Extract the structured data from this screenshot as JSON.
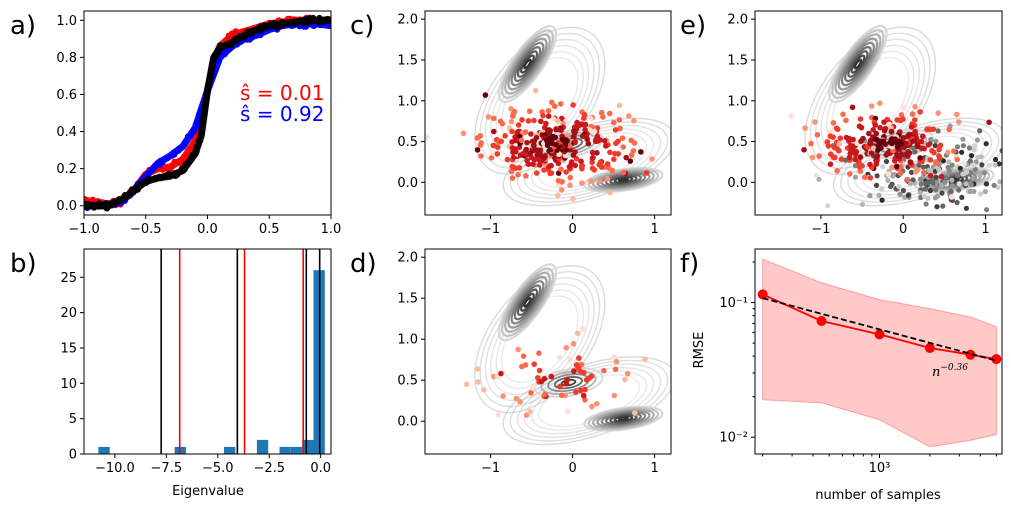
{
  "panel_labels": [
    "a)",
    "b)",
    "c)",
    "d)",
    "e)",
    "f)"
  ],
  "colors": {
    "red": "#ff0000",
    "blue": "#0000ff",
    "black": "#000000",
    "bar": "#1f77b4",
    "rmse_line": "#ff0000",
    "band": "#ffc9c9",
    "fit": "#000000"
  },
  "chart_data": [
    {
      "id": "a",
      "type": "line",
      "xlim": [
        -1.0,
        1.0
      ],
      "ylim": [
        -0.05,
        1.05
      ],
      "xticks": [
        -1.0,
        -0.5,
        0.0,
        0.5,
        1.0
      ],
      "xtick_labels": [
        "−1.0",
        "−0.5",
        "0.0",
        "0.5",
        "1.0"
      ],
      "yticks": [
        0.0,
        0.2,
        0.4,
        0.6,
        0.8,
        1.0
      ],
      "ytick_labels": [
        "0.0",
        "0.2",
        "0.4",
        "0.6",
        "0.8",
        "1.0"
      ],
      "annotations": [
        {
          "text": "ŝ = 0.01",
          "color": "#ff0000"
        },
        {
          "text": "ŝ = 0.92",
          "color": "#0000ff"
        }
      ],
      "series": [
        {
          "name": "red",
          "color": "#ff0000",
          "x": [
            -1.0,
            -0.9,
            -0.8,
            -0.7,
            -0.6,
            -0.5,
            -0.4,
            -0.3,
            -0.2,
            -0.1,
            -0.05,
            0.0,
            0.05,
            0.1,
            0.2,
            0.3,
            0.4,
            0.5,
            0.6,
            0.7,
            0.8,
            0.9,
            1.0
          ],
          "y": [
            0.03,
            0.02,
            0.01,
            0.02,
            0.08,
            0.17,
            0.2,
            0.21,
            0.25,
            0.35,
            0.45,
            0.62,
            0.78,
            0.86,
            0.92,
            0.94,
            0.96,
            0.98,
            0.99,
            1.0,
            1.0,
            1.0,
            1.0
          ]
        },
        {
          "name": "blue",
          "color": "#0000ff",
          "x": [
            -1.0,
            -0.9,
            -0.8,
            -0.7,
            -0.6,
            -0.5,
            -0.4,
            -0.3,
            -0.2,
            -0.1,
            0.0,
            0.1,
            0.2,
            0.3,
            0.4,
            0.5,
            0.6,
            0.7,
            0.8,
            0.9,
            1.0
          ],
          "y": [
            0.0,
            0.0,
            0.0,
            0.02,
            0.08,
            0.16,
            0.23,
            0.27,
            0.32,
            0.42,
            0.62,
            0.8,
            0.86,
            0.9,
            0.92,
            0.95,
            0.97,
            0.98,
            0.98,
            0.98,
            0.97
          ]
        },
        {
          "name": "black",
          "color": "#000000",
          "x": [
            -1.0,
            -0.9,
            -0.8,
            -0.7,
            -0.6,
            -0.5,
            -0.4,
            -0.3,
            -0.2,
            -0.1,
            -0.05,
            0.0,
            0.05,
            0.1,
            0.2,
            0.3,
            0.4,
            0.5,
            0.6,
            0.7,
            0.8,
            0.9,
            1.0
          ],
          "y": [
            0.0,
            0.0,
            0.0,
            0.03,
            0.08,
            0.13,
            0.15,
            0.16,
            0.19,
            0.28,
            0.38,
            0.62,
            0.8,
            0.85,
            0.88,
            0.92,
            0.95,
            0.97,
            0.98,
            0.99,
            1.0,
            1.0,
            1.0
          ]
        }
      ]
    },
    {
      "id": "b",
      "type": "bar",
      "xlabel": "Eigenvalue",
      "xlim": [
        -11.5,
        0.5
      ],
      "ylim": [
        0,
        29
      ],
      "xticks": [
        -10.0,
        -7.5,
        -5.0,
        -2.5,
        0.0
      ],
      "xtick_labels": [
        "−10.0",
        "−7.5",
        "−5.0",
        "−2.5",
        "0.0"
      ],
      "yticks": [
        0,
        5,
        10,
        15,
        20,
        25
      ],
      "ytick_labels": [
        "0",
        "5",
        "10",
        "15",
        "20",
        "25"
      ],
      "bin_width": 0.55,
      "bins": [
        -10.8,
        -7.1,
        -4.7,
        -3.1,
        -2.0,
        -1.45,
        -0.9,
        -0.35
      ],
      "values": [
        1,
        1,
        1,
        2,
        1,
        1,
        2,
        26
      ],
      "vlines_black": [
        -7.75,
        -4.05,
        -0.7,
        -0.05
      ],
      "vlines_red": [
        -6.85,
        -3.7,
        -0.85
      ]
    },
    {
      "id": "c",
      "type": "scatter",
      "xlim": [
        -1.8,
        1.2
      ],
      "ylim": [
        -0.4,
        2.1
      ],
      "xticks": [
        -1,
        0,
        1
      ],
      "xtick_labels": [
        "−1",
        "0",
        "1"
      ],
      "yticks": [
        0.0,
        0.5,
        1.0,
        1.5,
        2.0
      ],
      "ytick_labels": [
        "0.0",
        "0.5",
        "1.0",
        "1.5",
        "2.0"
      ],
      "description": "Muller-Brown potential contours (grey) with sampled points colored red by density",
      "wells": [
        {
          "x": -0.55,
          "y": 1.45
        },
        {
          "x": -0.05,
          "y": 0.47
        },
        {
          "x": 0.62,
          "y": 0.03
        }
      ],
      "cloud": {
        "cx": -0.2,
        "cy": 0.47,
        "sx": 0.45,
        "sy": 0.22,
        "n": 320,
        "palette": "reds"
      },
      "grey_cloud": null
    },
    {
      "id": "d",
      "type": "scatter",
      "xlim": [
        -1.8,
        1.2
      ],
      "ylim": [
        -0.4,
        2.1
      ],
      "xticks": [
        -1,
        0,
        1
      ],
      "xtick_labels": [
        "−1",
        "0",
        "1"
      ],
      "yticks": [
        0.0,
        0.5,
        1.0,
        1.5,
        2.0
      ],
      "ytick_labels": [
        "0.0",
        "0.5",
        "1.0",
        "1.5",
        "2.0"
      ],
      "wells": [
        {
          "x": -0.55,
          "y": 1.45
        },
        {
          "x": -0.05,
          "y": 0.47
        },
        {
          "x": 0.62,
          "y": 0.03
        }
      ],
      "cloud": {
        "cx": -0.15,
        "cy": 0.55,
        "sx": 0.55,
        "sy": 0.25,
        "n": 70,
        "palette": "reds_light"
      },
      "grey_cloud": null
    },
    {
      "id": "e",
      "type": "scatter",
      "xlim": [
        -1.8,
        1.2
      ],
      "ylim": [
        -0.4,
        2.1
      ],
      "xticks": [
        -1,
        0,
        1
      ],
      "xtick_labels": [
        "−1",
        "0",
        "1"
      ],
      "yticks": [
        0.0,
        0.5,
        1.0,
        1.5,
        2.0
      ],
      "ytick_labels": [
        "0.0",
        "0.5",
        "1.0",
        "1.5",
        "2.0"
      ],
      "wells": [
        {
          "x": -0.55,
          "y": 1.45
        },
        {
          "x": -0.05,
          "y": 0.47
        },
        {
          "x": 0.62,
          "y": 0.03
        }
      ],
      "cloud": {
        "cx": -0.2,
        "cy": 0.47,
        "sx": 0.42,
        "sy": 0.2,
        "n": 240,
        "palette": "reds"
      },
      "grey_cloud": {
        "cx": 0.35,
        "cy": 0.1,
        "sx": 0.5,
        "sy": 0.25,
        "n": 230
      }
    },
    {
      "id": "f",
      "type": "line",
      "scale": "loglog",
      "xlabel": "number of samples",
      "ylabel": "RMSE",
      "xlim": [
        180,
        5400
      ],
      "ylim": [
        0.0075,
        0.25
      ],
      "xticks": [
        1000
      ],
      "xtick_labels": [
        "10³"
      ],
      "yticks": [
        0.01,
        0.1
      ],
      "ytick_labels": [
        "10⁻²",
        "10⁻¹"
      ],
      "x": [
        200,
        450,
        1000,
        2000,
        3500,
        5000
      ],
      "y": [
        0.115,
        0.073,
        0.058,
        0.046,
        0.041,
        0.038
      ],
      "band_upper": [
        0.21,
        0.14,
        0.105,
        0.09,
        0.078,
        0.066
      ],
      "band_lower": [
        0.019,
        0.018,
        0.0135,
        0.0085,
        0.0095,
        0.0105
      ],
      "fit": {
        "exponent": -0.36,
        "label": "n^-0.36",
        "x": [
          200,
          5000
        ],
        "y": [
          0.108,
          0.037
        ]
      },
      "fit_label_base": "n",
      "fit_label_exp": "−0.36"
    }
  ]
}
